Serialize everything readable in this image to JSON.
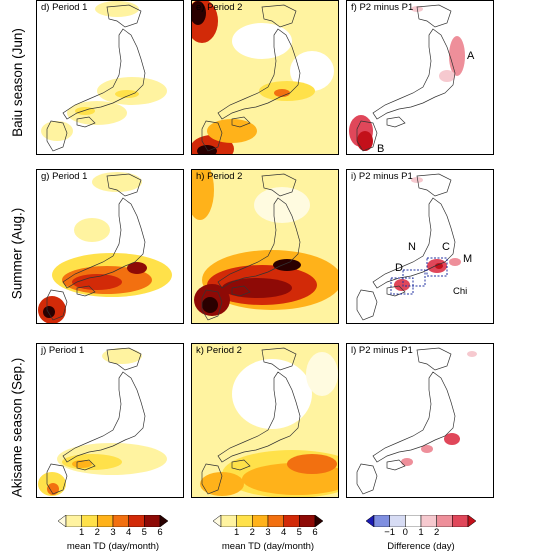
{
  "row_labels": [
    "Baiu season  (Jun)",
    "Summer (Aug.)",
    "Akisame season (Sep.)"
  ],
  "panels": [
    {
      "title": "d) Period 1"
    },
    {
      "title": "e) Period 2"
    },
    {
      "title": "f) P2 minus P1"
    },
    {
      "title": "g) Period 1"
    },
    {
      "title": "h) Period 2"
    },
    {
      "title": "i) P2 minus P1"
    },
    {
      "title": "j) Period 1"
    },
    {
      "title": "k) Period 2"
    },
    {
      "title": "l) P2 minus P1"
    }
  ],
  "annotations": {
    "f": [
      "A",
      "B"
    ],
    "i": [
      "N",
      "C",
      "M",
      "D",
      "Chi"
    ]
  },
  "colorbars": [
    {
      "label": "mean TD (day/month)",
      "ticks": [
        "1",
        "2",
        "3",
        "4",
        "5",
        "6"
      ],
      "colors": [
        "#fffbe0",
        "#fff3a0",
        "#ffe14a",
        "#ffb21a",
        "#f27010",
        "#d22a08",
        "#8e0a06",
        "#2a0000"
      ]
    },
    {
      "label": "mean TD (day/month)",
      "ticks": [
        "1",
        "2",
        "3",
        "4",
        "5",
        "6"
      ],
      "colors": [
        "#fffbe0",
        "#fff3a0",
        "#ffe14a",
        "#ffb21a",
        "#f27010",
        "#d22a08",
        "#8e0a06",
        "#2a0000"
      ]
    },
    {
      "label": "Difference (day)",
      "ticks": [
        "−1",
        "0",
        "1",
        "2"
      ],
      "colors": [
        "#1a1ab4",
        "#7f8fe0",
        "#d7dcf4",
        "#ffffff",
        "#f6c9cf",
        "#ee8f9a",
        "#e0475a",
        "#c3101a"
      ]
    }
  ]
}
